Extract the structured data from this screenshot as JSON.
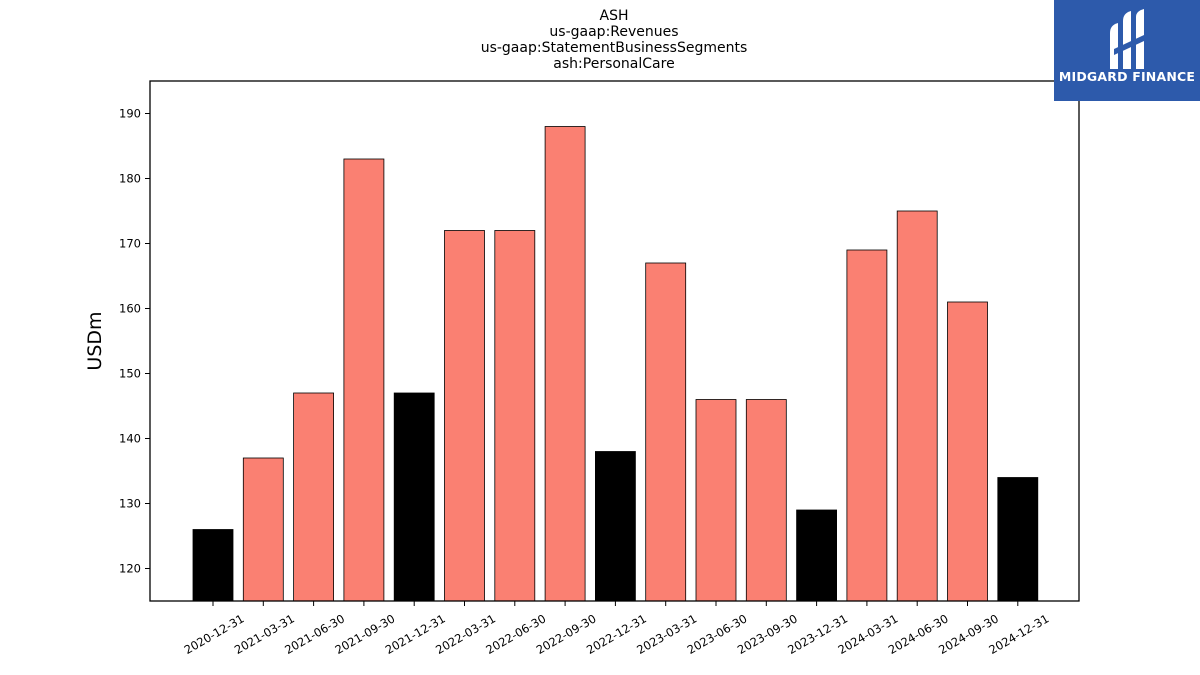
{
  "chart_data": {
    "type": "bar",
    "title": [
      "ASH",
      "us-gaap:Revenues",
      "us-gaap:StatementBusinessSegments",
      "ash:PersonalCare"
    ],
    "xlabel": "",
    "ylabel": "USDm",
    "ylim": [
      115,
      195
    ],
    "yticks": [
      120,
      130,
      140,
      150,
      160,
      170,
      180,
      190
    ],
    "grid": false,
    "categories": [
      "2020-12-31",
      "2021-03-31",
      "2021-06-30",
      "2021-09-30",
      "2021-12-31",
      "2022-03-31",
      "2022-06-30",
      "2022-09-30",
      "2022-12-31",
      "2023-03-31",
      "2023-06-30",
      "2023-09-30",
      "2023-12-31",
      "2024-03-31",
      "2024-06-30",
      "2024-09-30",
      "2024-12-31"
    ],
    "values": [
      126,
      137,
      147,
      183,
      147,
      172,
      172,
      188,
      138,
      167,
      146,
      146,
      129,
      169,
      175,
      161,
      134
    ],
    "colors": {
      "quarter": "#fa8072",
      "year_end": "#000000"
    },
    "bar_type": [
      "year_end",
      "quarter",
      "quarter",
      "quarter",
      "year_end",
      "quarter",
      "quarter",
      "quarter",
      "year_end",
      "quarter",
      "quarter",
      "quarter",
      "year_end",
      "quarter",
      "quarter",
      "quarter",
      "year_end"
    ]
  },
  "logo": {
    "text": "MIDGARD FINANCE",
    "background": "#2d5aab"
  }
}
